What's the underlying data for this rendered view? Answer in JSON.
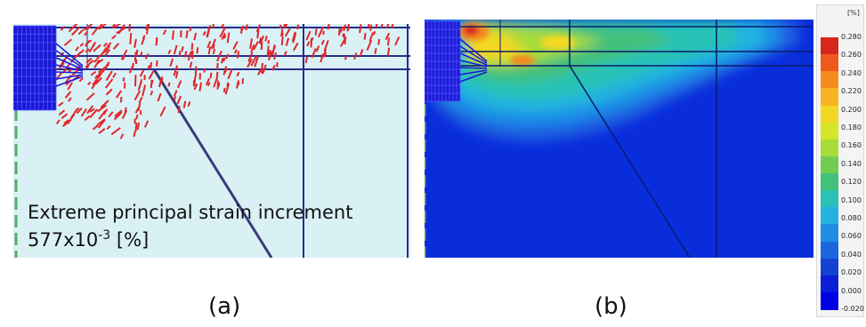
{
  "panel_a": {
    "label_line1": "Extreme principal strain increment",
    "label_line2_prefix": "577x10",
    "label_line2_exp": "-3",
    "label_line2_suffix": " [%]"
  },
  "captions": {
    "a": "(a)",
    "b": "(b)"
  },
  "legend": {
    "unit": "[%]",
    "ticks": [
      "0.280",
      "0.260",
      "0.240",
      "0.220",
      "0.200",
      "0.180",
      "0.160",
      "0.140",
      "0.120",
      "0.100",
      "0.080",
      "0.060",
      "0.040",
      "0.020",
      "0.000",
      "-0.020"
    ],
    "colors": [
      "#d7261b",
      "#ef5a1c",
      "#f58a1f",
      "#f8b423",
      "#f2d823",
      "#d6e62b",
      "#a8dc3a",
      "#71cc52",
      "#43c07a",
      "#28c2b6",
      "#22b3e0",
      "#1e8ee6",
      "#1a67dd",
      "#1542d2",
      "#0b1ed6",
      "#0000e6"
    ]
  },
  "colors": {
    "panel_a_bg": "#d9f1f5",
    "panel_b_bg": "#0a2ddc",
    "mesh_blue": "#2222cc",
    "strain_marks": "#e0262a"
  }
}
